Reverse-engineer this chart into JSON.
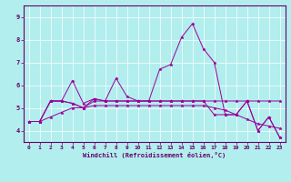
{
  "xlabel": "Windchill (Refroidissement éolien,°C)",
  "bg_color": "#b2eeee",
  "grid_color": "#ffffff",
  "line_color": "#990099",
  "axis_color": "#660066",
  "xlim": [
    -0.5,
    23.5
  ],
  "ylim": [
    3.5,
    9.5
  ],
  "xticks": [
    0,
    1,
    2,
    3,
    4,
    5,
    6,
    7,
    8,
    9,
    10,
    11,
    12,
    13,
    14,
    15,
    16,
    17,
    18,
    19,
    20,
    21,
    22,
    23
  ],
  "yticks": [
    4,
    5,
    6,
    7,
    8,
    9
  ],
  "series": [
    [
      4.4,
      4.4,
      5.3,
      5.3,
      6.2,
      5.2,
      5.4,
      5.3,
      6.3,
      5.5,
      5.3,
      5.3,
      6.7,
      6.9,
      8.1,
      8.7,
      7.6,
      7.0,
      4.7,
      4.7,
      5.3,
      4.0,
      4.6,
      3.7
    ],
    [
      4.4,
      4.4,
      5.3,
      5.3,
      5.2,
      5.0,
      5.4,
      5.3,
      5.3,
      5.3,
      5.3,
      5.3,
      5.3,
      5.3,
      5.3,
      5.3,
      5.3,
      5.3,
      5.3,
      5.3,
      5.3,
      5.3,
      5.3,
      5.3
    ],
    [
      4.4,
      4.4,
      4.6,
      4.8,
      5.0,
      5.0,
      5.1,
      5.1,
      5.1,
      5.1,
      5.1,
      5.1,
      5.1,
      5.1,
      5.1,
      5.1,
      5.1,
      5.0,
      4.9,
      4.7,
      4.5,
      4.3,
      4.2,
      4.1
    ],
    [
      4.4,
      4.4,
      5.3,
      5.3,
      5.2,
      5.0,
      5.3,
      5.3,
      5.3,
      5.3,
      5.3,
      5.3,
      5.3,
      5.3,
      5.3,
      5.3,
      5.3,
      4.7,
      4.7,
      4.7,
      5.3,
      4.0,
      4.6,
      3.7
    ]
  ]
}
